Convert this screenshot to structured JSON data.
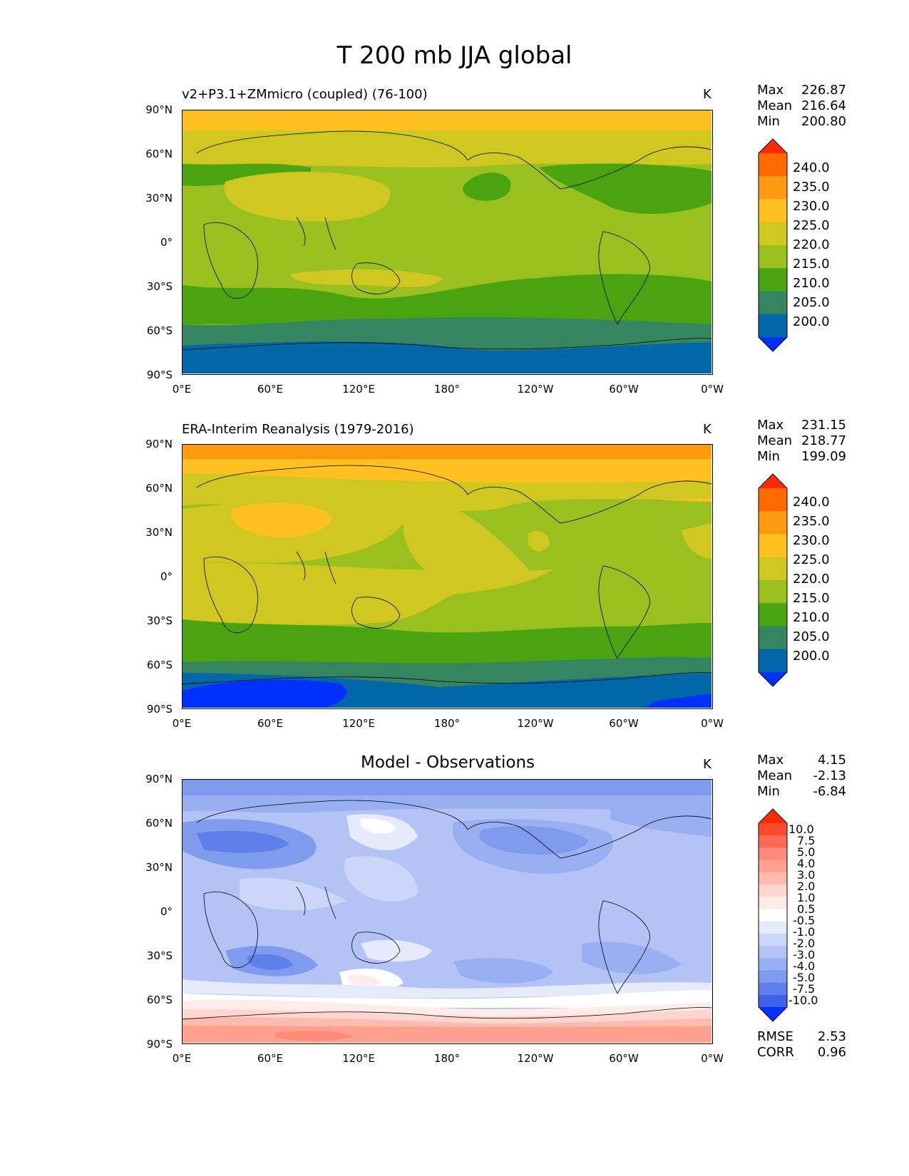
{
  "figure": {
    "title": "T 200 mb JJA global",
    "x_ticks": [
      "0°E",
      "60°E",
      "120°E",
      "180°",
      "120°W",
      "60°W",
      "0°W"
    ],
    "y_ticks": [
      "90°N",
      "60°N",
      "30°N",
      "0°",
      "30°S",
      "60°S",
      "90°S"
    ]
  },
  "panels": [
    {
      "title": "v2+P3.1+ZMmicro (coupled) (76-100)",
      "units": "K",
      "stats": [
        {
          "label": "Max",
          "value": "226.87"
        },
        {
          "label": "Mean",
          "value": "216.64"
        },
        {
          "label": "Min",
          "value": "200.80"
        }
      ],
      "colorbar": {
        "levels": [
          "240.0",
          "235.0",
          "230.0",
          "225.0",
          "220.0",
          "215.0",
          "210.0",
          "205.0",
          "200.0"
        ],
        "colors": [
          "#ff2a00",
          "#ff6a00",
          "#ff9a10",
          "#ffc020",
          "#d0c820",
          "#9ac020",
          "#4aa410",
          "#358560",
          "#0068a8",
          "#0030ff"
        ]
      }
    },
    {
      "title": "ERA-Interim Reanalysis (1979-2016)",
      "units": "K",
      "stats": [
        {
          "label": "Max",
          "value": "231.15"
        },
        {
          "label": "Mean",
          "value": "218.77"
        },
        {
          "label": "Min",
          "value": "199.09"
        }
      ],
      "colorbar": {
        "levels": [
          "240.0",
          "235.0",
          "230.0",
          "225.0",
          "220.0",
          "215.0",
          "210.0",
          "205.0",
          "200.0"
        ],
        "colors": [
          "#ff2a00",
          "#ff6a00",
          "#ff9a10",
          "#ffc020",
          "#d0c820",
          "#9ac020",
          "#4aa410",
          "#358560",
          "#0068a8",
          "#0030ff"
        ]
      }
    },
    {
      "title": "Model - Observations",
      "units": "K",
      "stats": [
        {
          "label": "Max",
          "value": "4.15"
        },
        {
          "label": "Mean",
          "value": "-2.13"
        },
        {
          "label": "Min",
          "value": "-6.84"
        }
      ],
      "colorbar": {
        "levels": [
          "10.0",
          "7.5",
          "5.0",
          "4.0",
          "3.0",
          "2.0",
          "1.0",
          "0.5",
          "-0.5",
          "-1.0",
          "-2.0",
          "-3.0",
          "-4.0",
          "-5.0",
          "-7.5",
          "-10.0"
        ],
        "colors": [
          "#ff2a00",
          "#ff4a30",
          "#ff6a55",
          "#ff8a78",
          "#ffa090",
          "#ffbbb0",
          "#ffd5d0",
          "#ffecea",
          "#ffffff",
          "#e6ebfb",
          "#ccd6f8",
          "#b3c3f6",
          "#99aff2",
          "#7f9bee",
          "#5f7fea",
          "#3f63e8",
          "#0030ff"
        ]
      },
      "metrics": [
        {
          "label": "RMSE",
          "value": "2.53"
        },
        {
          "label": "CORR",
          "value": "0.96"
        }
      ]
    }
  ],
  "chart_data": [
    {
      "type": "heatmap",
      "title": "v2+P3.1+ZMmicro (coupled) (76-100)",
      "variable": "T 200 mb JJA",
      "units": "K",
      "xlim": [
        0,
        360
      ],
      "ylim": [
        -90,
        90
      ],
      "zonal_profile": {
        "lat": [
          85,
          75,
          65,
          50,
          35,
          20,
          0,
          -20,
          -35,
          -50,
          -62,
          -75,
          -85
        ],
        "value": [
          226,
          223,
          221,
          218,
          221,
          219,
          218,
          219,
          216,
          213,
          209,
          206,
          205
        ]
      },
      "max": 226.87,
      "mean": 216.64,
      "min": 200.8
    },
    {
      "type": "heatmap",
      "title": "ERA-Interim Reanalysis (1979-2016)",
      "variable": "T 200 mb JJA",
      "units": "K",
      "xlim": [
        0,
        360
      ],
      "ylim": [
        -90,
        90
      ],
      "zonal_profile": {
        "lat": [
          85,
          75,
          65,
          50,
          35,
          20,
          0,
          -20,
          -35,
          -50,
          -62,
          -75,
          -85
        ],
        "value": [
          231,
          227,
          223,
          220,
          222,
          221,
          219,
          221,
          219,
          216,
          212,
          206,
          201
        ]
      },
      "max": 231.15,
      "mean": 218.77,
      "min": 199.09
    },
    {
      "type": "heatmap",
      "title": "Model - Observations",
      "variable": "T 200 mb JJA difference",
      "units": "K",
      "xlim": [
        0,
        360
      ],
      "ylim": [
        -90,
        90
      ],
      "zonal_profile": {
        "lat": [
          85,
          75,
          65,
          50,
          35,
          20,
          0,
          -20,
          -35,
          -50,
          -62,
          -75,
          -85
        ],
        "value": [
          -4,
          -4,
          -2,
          -3.5,
          -2.5,
          -2,
          -1.5,
          -2,
          -3,
          -2.5,
          0.5,
          2,
          2.5
        ]
      },
      "max": 4.15,
      "mean": -2.13,
      "min": -6.84,
      "rmse": 2.53,
      "corr": 0.96
    }
  ]
}
